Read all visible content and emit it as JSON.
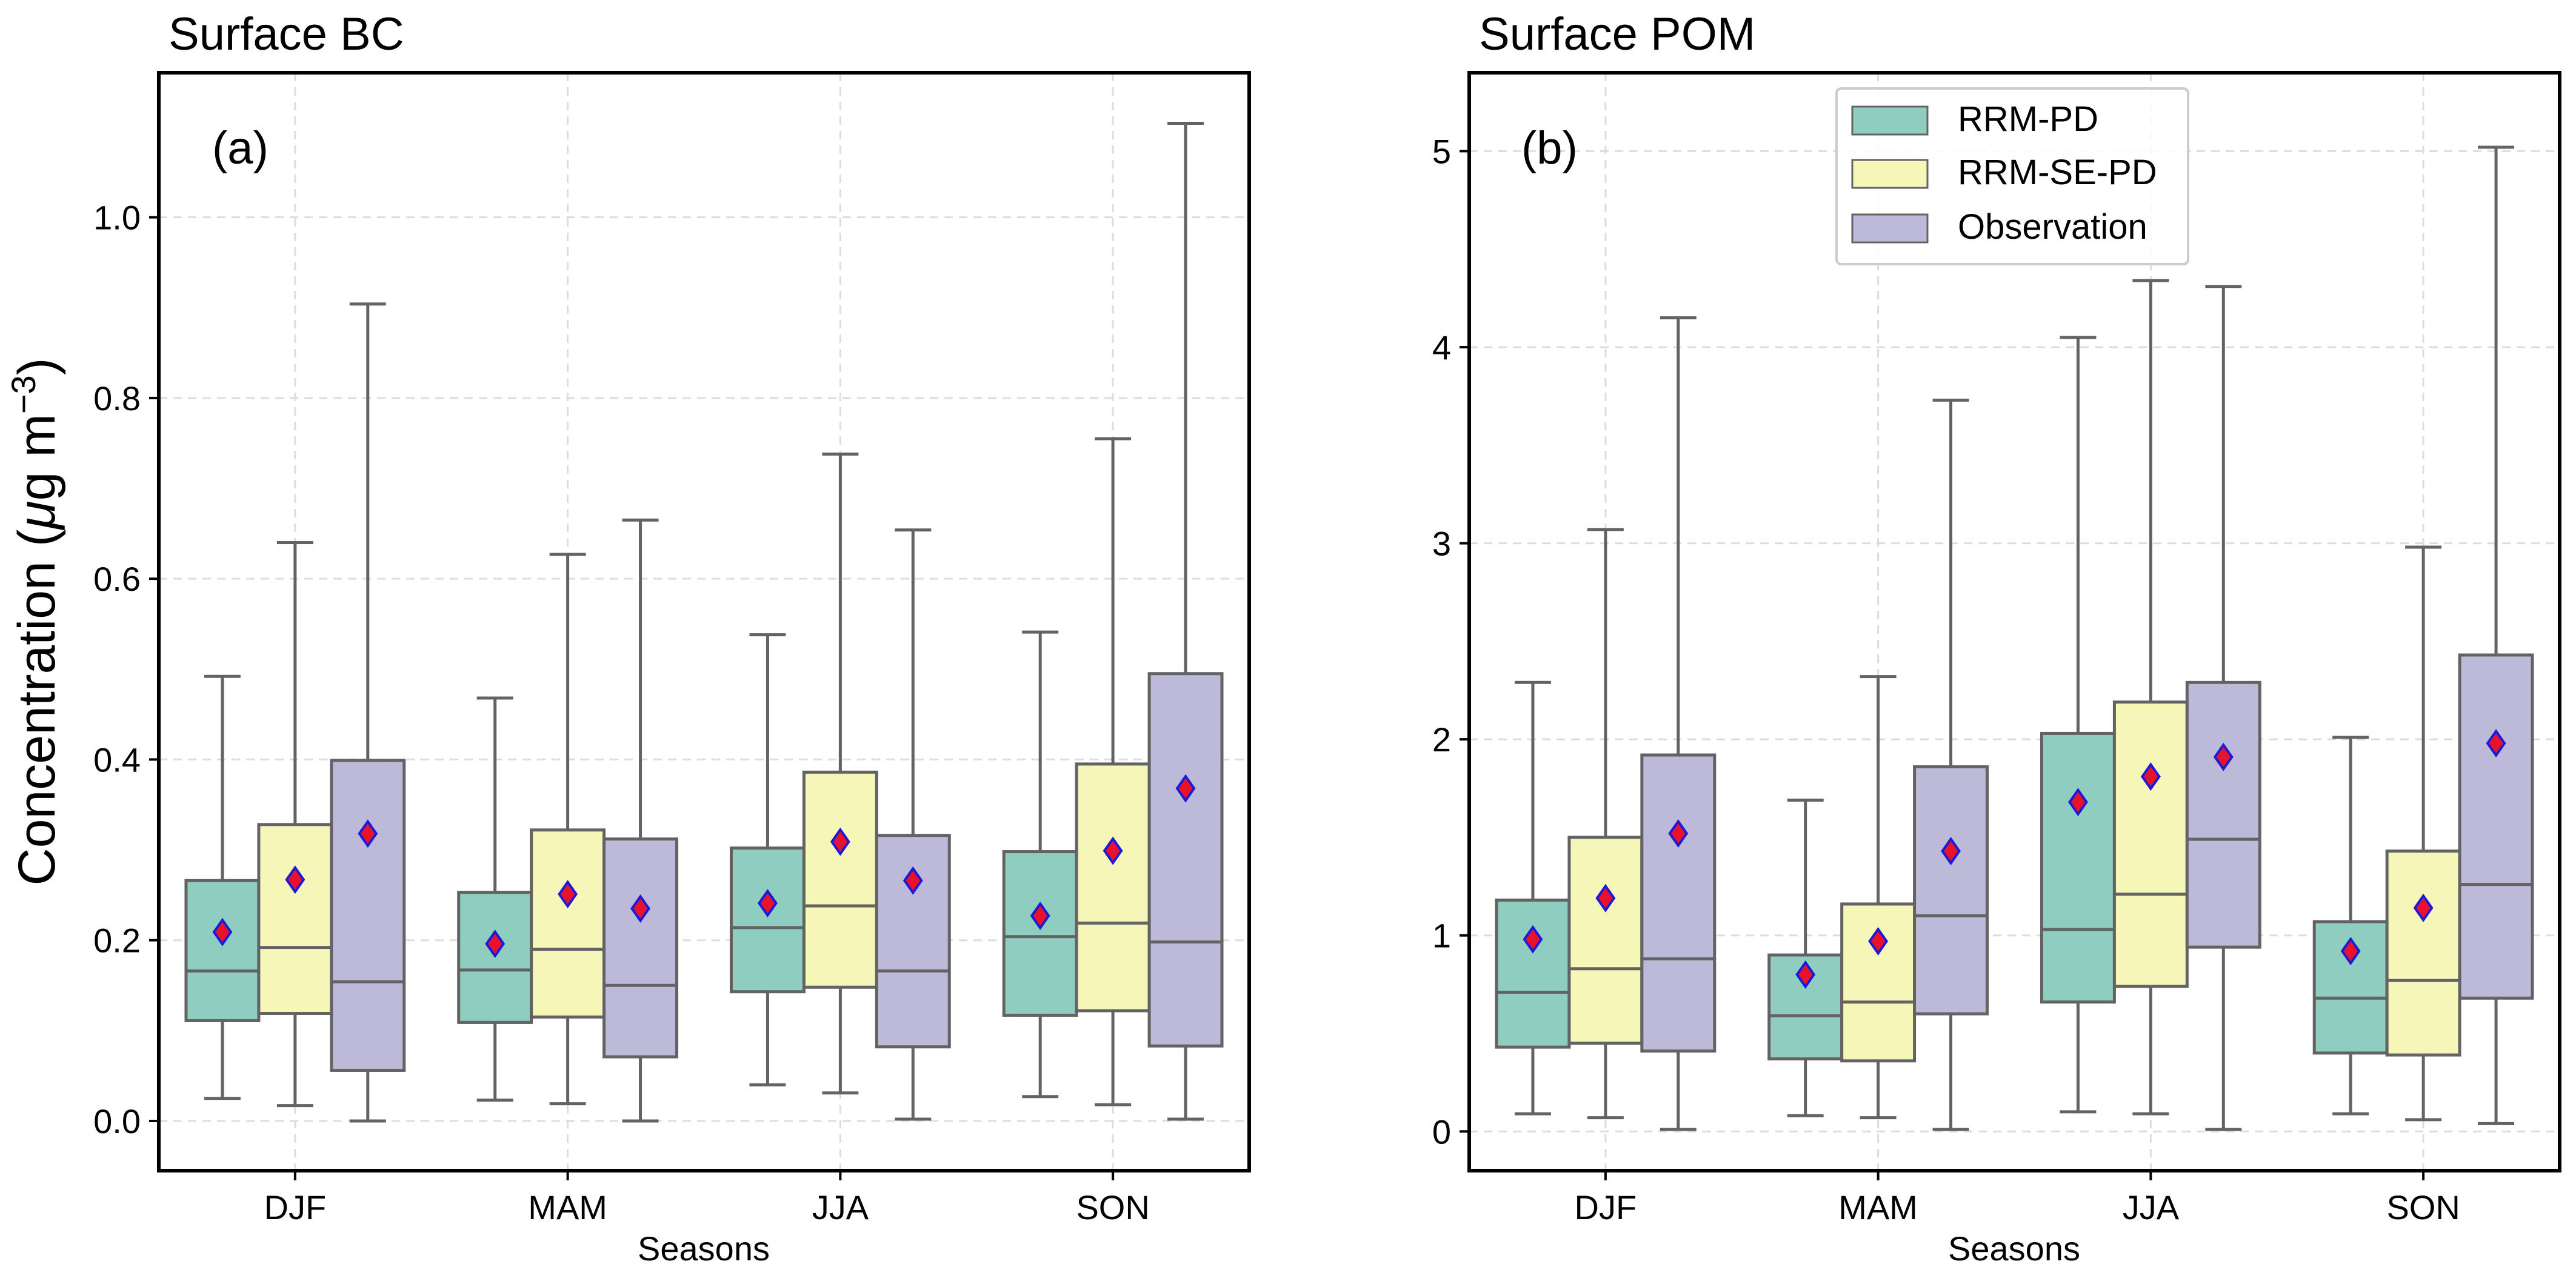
{
  "figure": {
    "ylabel_main": "Concentration (",
    "ylabel_mu": "μ",
    "ylabel_unit": "g m",
    "ylabel_exp": "−3",
    "ylabel_close": ")"
  },
  "legend": {
    "entries": [
      "RRM-PD",
      "RRM-SE-PD",
      "Observation"
    ]
  },
  "colors": {
    "RRM-PD": "#8ecdbf",
    "RRM-SE-PD": "#f7f6b9",
    "Observation": "#bdb9d8",
    "mean_fill": "#e8122d",
    "mean_edge": "#1a1adb",
    "box_edge": "#636363",
    "grid": "#dddddd"
  },
  "chart_data": [
    {
      "type": "box",
      "title": "Surface BC",
      "panel_label": "(a)",
      "xlabel": "Seasons",
      "ylabel": "Concentration (μg m−3)",
      "categories": [
        "DJF",
        "MAM",
        "JJA",
        "SON"
      ],
      "ylim": [
        -0.055,
        1.16
      ],
      "yticks": [
        0.0,
        0.2,
        0.4,
        0.6,
        0.8,
        1.0
      ],
      "ytick_labels": [
        "0.0",
        "0.2",
        "0.4",
        "0.6",
        "0.8",
        "1.0"
      ],
      "grid": true,
      "series": [
        {
          "name": "RRM-PD",
          "boxes": [
            {
              "whislo": 0.025,
              "q1": 0.111,
              "med": 0.166,
              "q3": 0.266,
              "whishi": 0.492,
              "mean": 0.209
            },
            {
              "whislo": 0.023,
              "q1": 0.109,
              "med": 0.167,
              "q3": 0.253,
              "whishi": 0.468,
              "mean": 0.196
            },
            {
              "whislo": 0.04,
              "q1": 0.143,
              "med": 0.214,
              "q3": 0.302,
              "whishi": 0.538,
              "mean": 0.241
            },
            {
              "whislo": 0.027,
              "q1": 0.117,
              "med": 0.204,
              "q3": 0.298,
              "whishi": 0.541,
              "mean": 0.227
            }
          ]
        },
        {
          "name": "RRM-SE-PD",
          "boxes": [
            {
              "whislo": 0.017,
              "q1": 0.119,
              "med": 0.192,
              "q3": 0.328,
              "whishi": 0.64,
              "mean": 0.267
            },
            {
              "whislo": 0.019,
              "q1": 0.115,
              "med": 0.19,
              "q3": 0.322,
              "whishi": 0.627,
              "mean": 0.251
            },
            {
              "whislo": 0.031,
              "q1": 0.148,
              "med": 0.238,
              "q3": 0.386,
              "whishi": 0.738,
              "mean": 0.309
            },
            {
              "whislo": 0.018,
              "q1": 0.122,
              "med": 0.219,
              "q3": 0.395,
              "whishi": 0.755,
              "mean": 0.299
            }
          ]
        },
        {
          "name": "Observation",
          "boxes": [
            {
              "whislo": 0.0,
              "q1": 0.056,
              "med": 0.154,
              "q3": 0.399,
              "whishi": 0.904,
              "mean": 0.318
            },
            {
              "whislo": 0.0,
              "q1": 0.071,
              "med": 0.15,
              "q3": 0.312,
              "whishi": 0.665,
              "mean": 0.235
            },
            {
              "whislo": 0.002,
              "q1": 0.082,
              "med": 0.166,
              "q3": 0.316,
              "whishi": 0.654,
              "mean": 0.266
            },
            {
              "whislo": 0.002,
              "q1": 0.083,
              "med": 0.198,
              "q3": 0.495,
              "whishi": 1.104,
              "mean": 0.368
            }
          ]
        }
      ]
    },
    {
      "type": "box",
      "title": "Surface POM",
      "panel_label": "(b)",
      "xlabel": "Seasons",
      "ylabel": "",
      "categories": [
        "DJF",
        "MAM",
        "JJA",
        "SON"
      ],
      "ylim": [
        -0.2,
        5.4
      ],
      "yticks": [
        0,
        1,
        2,
        3,
        4,
        5
      ],
      "ytick_labels": [
        "0",
        "1",
        "2",
        "3",
        "4",
        "5"
      ],
      "grid": true,
      "legend_position": "top-center",
      "series": [
        {
          "name": "RRM-PD",
          "boxes": [
            {
              "whislo": 0.09,
              "q1": 0.43,
              "med": 0.71,
              "q3": 1.18,
              "whishi": 2.29,
              "mean": 0.98
            },
            {
              "whislo": 0.08,
              "q1": 0.37,
              "med": 0.59,
              "q3": 0.9,
              "whishi": 1.69,
              "mean": 0.8
            },
            {
              "whislo": 0.1,
              "q1": 0.66,
              "med": 1.03,
              "q3": 2.03,
              "whishi": 4.05,
              "mean": 1.68
            },
            {
              "whislo": 0.09,
              "q1": 0.4,
              "med": 0.68,
              "q3": 1.07,
              "whishi": 2.01,
              "mean": 0.92
            }
          ]
        },
        {
          "name": "RRM-SE-PD",
          "boxes": [
            {
              "whislo": 0.07,
              "q1": 0.45,
              "med": 0.83,
              "q3": 1.5,
              "whishi": 3.07,
              "mean": 1.19
            },
            {
              "whislo": 0.07,
              "q1": 0.36,
              "med": 0.66,
              "q3": 1.16,
              "whishi": 2.32,
              "mean": 0.97
            },
            {
              "whislo": 0.09,
              "q1": 0.74,
              "med": 1.21,
              "q3": 2.19,
              "whishi": 4.34,
              "mean": 1.81
            },
            {
              "whislo": 0.06,
              "q1": 0.39,
              "med": 0.77,
              "q3": 1.43,
              "whishi": 2.98,
              "mean": 1.14
            }
          ]
        },
        {
          "name": "Observation",
          "boxes": [
            {
              "whislo": 0.01,
              "q1": 0.41,
              "med": 0.88,
              "q3": 1.92,
              "whishi": 4.15,
              "mean": 1.52
            },
            {
              "whislo": 0.01,
              "q1": 0.6,
              "med": 1.1,
              "q3": 1.86,
              "whishi": 3.73,
              "mean": 1.43
            },
            {
              "whislo": 0.01,
              "q1": 0.94,
              "med": 1.49,
              "q3": 2.29,
              "whishi": 4.31,
              "mean": 1.91
            },
            {
              "whislo": 0.04,
              "q1": 0.68,
              "med": 1.26,
              "q3": 2.43,
              "whishi": 5.02,
              "mean": 1.98
            }
          ]
        }
      ]
    }
  ]
}
